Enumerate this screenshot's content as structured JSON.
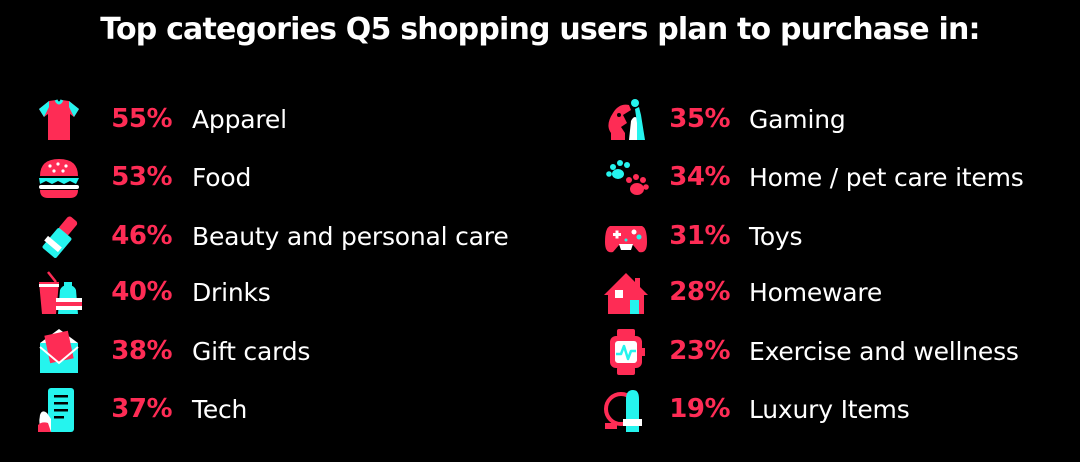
{
  "colors": {
    "accent_pink": "#fe2c55",
    "accent_cyan": "#25f4ee",
    "background": "#000000",
    "text": "#ffffff"
  },
  "chart_data": {
    "type": "table",
    "title": "Top categories Q5 shopping users plan to purchase in:",
    "columns": [
      {
        "items": [
          {
            "category": "Apparel",
            "percent_label": "55%",
            "value": 55,
            "icon": "shirt-icon"
          },
          {
            "category": "Food",
            "percent_label": "53%",
            "value": 53,
            "icon": "burger-icon"
          },
          {
            "category": "Beauty and personal care",
            "percent_label": "46%",
            "value": 46,
            "icon": "lipstick-icon"
          },
          {
            "category": "Drinks",
            "percent_label": "40%",
            "value": 40,
            "icon": "drinks-icon"
          },
          {
            "category": "Gift cards",
            "percent_label": "38%",
            "value": 38,
            "icon": "gift-card-icon"
          },
          {
            "category": "Tech",
            "percent_label": "37%",
            "value": 37,
            "icon": "phone-icon"
          }
        ]
      },
      {
        "items": [
          {
            "category": "Gaming",
            "percent_label": "35%",
            "value": 35,
            "icon": "chess-icon"
          },
          {
            "category": "Home / pet care items",
            "percent_label": "34%",
            "value": 34,
            "icon": "paw-icon"
          },
          {
            "category": "Toys",
            "percent_label": "31%",
            "value": 31,
            "icon": "gamepad-icon"
          },
          {
            "category": "Homeware",
            "percent_label": "28%",
            "value": 28,
            "icon": "house-icon"
          },
          {
            "category": "Exercise and wellness",
            "percent_label": "23%",
            "value": 23,
            "icon": "smartwatch-icon"
          },
          {
            "category": "Luxury Items",
            "percent_label": "19%",
            "value": 19,
            "icon": "ring-icon"
          }
        ]
      }
    ]
  }
}
